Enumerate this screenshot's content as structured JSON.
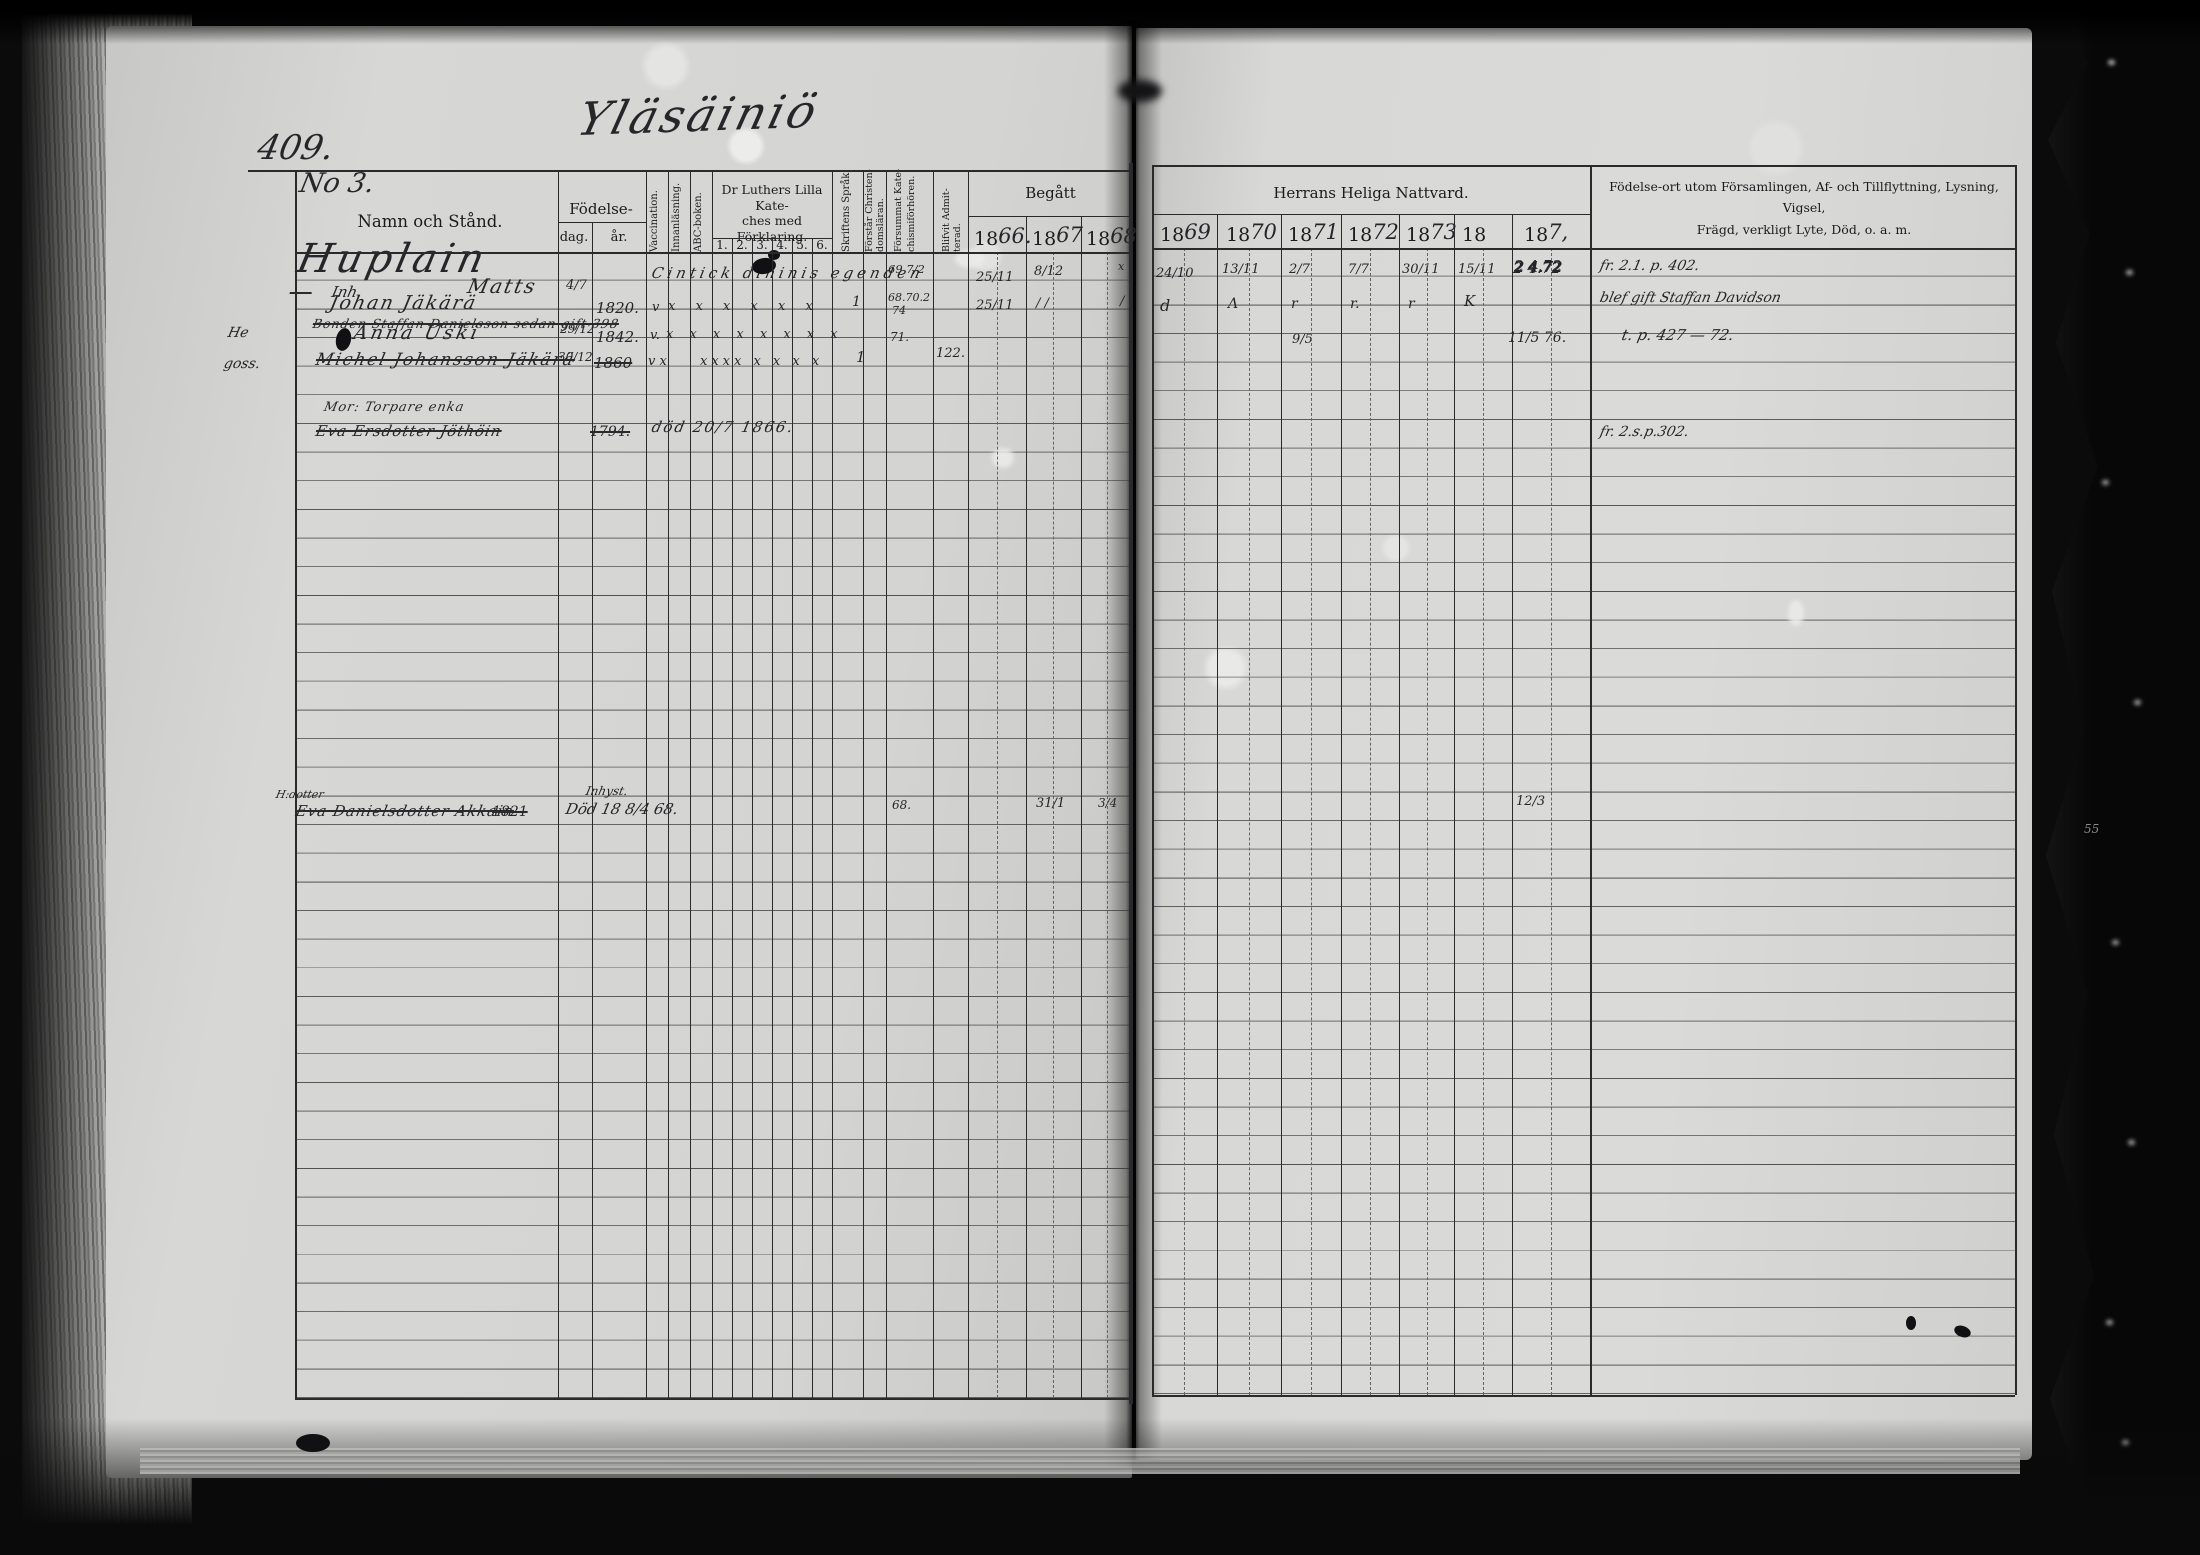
{
  "scan": {
    "page_number": "409.",
    "section_no": "No 3.",
    "title_script": "Yläsäiniö",
    "right_margin_mark": "55"
  },
  "table": {
    "name_col": "Namn och Stånd.",
    "birth": {
      "label": "Födelse-",
      "day": "dag.",
      "year": "år."
    },
    "vertical_cols": {
      "vaccination": "Vaccination.",
      "innanlasning": "Innanläsning.",
      "abc": "ABC-boken.",
      "skriftens": "Skriftens Språk.",
      "forstar_1": "Förstår Christen-",
      "forstar_2": "domsläran.",
      "forsummat_1": "Försummat Kate-",
      "forsummat_2": "chismiförhören.",
      "blifvit_1": "Blifvit Admit-",
      "blifvit_2": "terad."
    },
    "katekes": {
      "line1": "Dr Luthers Lilla Kate-",
      "line2": "ches med Förklaring.",
      "numbers": [
        "1.",
        "2.",
        "3.",
        "4.",
        "5.",
        "6."
      ]
    },
    "begatt": "Begått",
    "nattvard": "Herrans Heliga Nattvard.",
    "notes_header": {
      "line1": "Födelse-ort utom Församlingen, Af- och Tillflyttning, Lysning, Vigsel,",
      "line2": "Frägd, verkligt Lyte, Död, o. a. m."
    },
    "years_left": [
      {
        "p": "18",
        "s": "66."
      },
      {
        "p": "18",
        "s": "67"
      },
      {
        "p": "18",
        "s": "68"
      }
    ],
    "years_right": [
      {
        "p": "18",
        "s": "69"
      },
      {
        "p": "18",
        "s": "70"
      },
      {
        "p": "18",
        "s": "71"
      },
      {
        "p": "18",
        "s": "72"
      },
      {
        "p": "18",
        "s": "73"
      },
      {
        "p": "18",
        "s": ""
      },
      {
        "p": "18",
        "s": "7,"
      }
    ]
  },
  "entries": {
    "family_name": "Huplain",
    "r1": {
      "prefix": "Inh.",
      "name": "Matts",
      "birth_day": "4/7",
      "span_note": "Cintick dininis egenden",
      "forsummat": "69 7/2",
      "y1866": "25/11",
      "y1867": "8/12",
      "y1868": "x",
      "y1869": "24/10",
      "y1870": "13/11",
      "y1871": "2/7",
      "y1872": "7/7",
      "y1873": "30/11",
      "y18": "15/11",
      "y187": "2 4.72",
      "note": "fr. 2.1. p. 402."
    },
    "r2": {
      "name": "Johan Jäkärä",
      "struck": "Bonden Staffan Danielsson      sedan gift 398",
      "birth_year": "1820.",
      "vacc": "v",
      "katekes": "x x x x x x",
      "skrift": "1",
      "forsummat_a": "68.70.2",
      "forsummat_b": "74",
      "y1866": "25/11",
      "y1867": "/ /",
      "y1868": "/",
      "y1869": "d",
      "y1870": "Λ",
      "y1871": "r",
      "y1872": "r.",
      "y1873": "r",
      "y18": "K",
      "note": "blef gift Staffan Davidson"
    },
    "r3": {
      "margin": "He",
      "name": "Anna Uski",
      "birth_day": "29/12",
      "birth_year": "1842.",
      "vacc": "v.",
      "katekes": "x x x x x x x x",
      "forsummat": "71.",
      "y1871": "9/5",
      "y187": "11/5 76.",
      "note": "t. p. 427 — 72."
    },
    "r4": {
      "margin": "goss.",
      "name": "Michel Johansson Jäkärä",
      "birth_day": "30/12",
      "birth_year": "1860",
      "vacc": "v x",
      "katekes": "xxxx x x x x",
      "forstar": "1",
      "blifvit": "122."
    },
    "r5": {
      "label": "Mor: Torpare enka"
    },
    "r6": {
      "name": "Eva Ersdotter Jöthöin",
      "birth_year": "1794.",
      "death_note": "död 20/7 1866.",
      "note": "fr. 2.s.p.302."
    },
    "r19": {
      "margin": "H:dotter",
      "name": "Eva Danielsdotter Akkain",
      "birth_year": "1821",
      "small_note": "Inhyst.",
      "death_note": "Död 18 8/4 68.",
      "forsummat": "68.",
      "y1867": "31/1",
      "y1868": "3/4",
      "y18": "12/3"
    }
  }
}
